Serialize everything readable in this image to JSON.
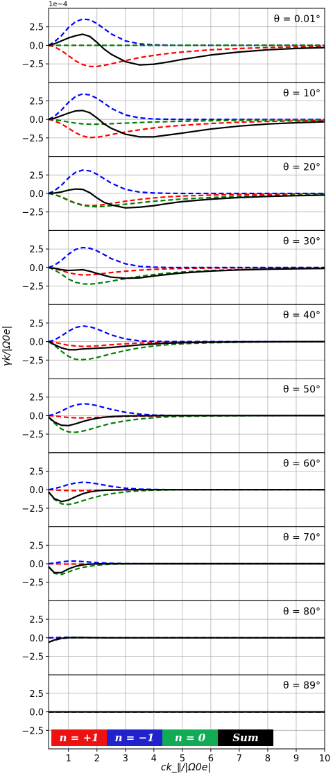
{
  "chart_data": {
    "type": "line",
    "layout": "10 stacked panels sharing x axis",
    "xlabel": "ck_∥/|Ω0e|",
    "ylabel": "γk/|Ω0e|",
    "offset_text": "1e−4",
    "y_scale_factor": 0.0001,
    "xlim": [
      0.3,
      10
    ],
    "ylim": [
      -5,
      5
    ],
    "xticks": [
      1,
      2,
      3,
      4,
      5,
      6,
      7,
      8,
      9,
      10
    ],
    "yticks": [
      -2.5,
      0.0,
      2.5
    ],
    "ytick_labels": [
      "−2.5",
      "0.0",
      "2.5"
    ],
    "grid": true,
    "legend": {
      "placement": "bottom-left of last panel",
      "entries": [
        {
          "label": "n = +1",
          "color": "#ee1111"
        },
        {
          "label": "n = −1",
          "color": "#2222cc"
        },
        {
          "label": "n = 0",
          "color": "#11aa55"
        },
        {
          "label": "Sum",
          "color": "#000000"
        }
      ]
    },
    "series_styles": {
      "n+1": {
        "color": "#ff0000",
        "dash": true
      },
      "n-1": {
        "color": "#0000ff",
        "dash": true
      },
      "n0": {
        "color": "#008000",
        "dash": true
      },
      "sum": {
        "color": "#000000",
        "dash": false
      }
    },
    "x": [
      0.3,
      0.5,
      0.75,
      1.0,
      1.25,
      1.5,
      1.75,
      2.0,
      2.25,
      2.5,
      3.0,
      3.5,
      4.0,
      4.5,
      5.0,
      6.0,
      7.0,
      8.0,
      9.0,
      10.0
    ],
    "panels": [
      {
        "label": "θ = 0.01°",
        "n_plus1": [
          0.0,
          -0.2,
          -0.7,
          -1.4,
          -2.1,
          -2.6,
          -2.85,
          -2.85,
          -2.7,
          -2.5,
          -2.05,
          -1.65,
          -1.35,
          -1.1,
          -0.9,
          -0.6,
          -0.42,
          -0.3,
          -0.22,
          -0.16
        ],
        "n_minus1": [
          0.0,
          0.45,
          1.3,
          2.4,
          3.2,
          3.55,
          3.45,
          2.95,
          2.25,
          1.55,
          0.6,
          0.2,
          0.07,
          0.02,
          0.0,
          0.0,
          0.0,
          0.0,
          0.0,
          0.0
        ],
        "n_0": [
          0.0,
          0.0,
          0.0,
          0.0,
          0.0,
          0.0,
          0.0,
          0.0,
          0.0,
          0.0,
          0.0,
          0.0,
          0.0,
          0.0,
          0.0,
          0.0,
          0.0,
          0.0,
          0.0,
          0.0
        ],
        "sum": [
          0.0,
          0.2,
          0.6,
          1.0,
          1.3,
          1.5,
          1.2,
          0.4,
          -0.5,
          -1.2,
          -2.2,
          -2.65,
          -2.55,
          -2.25,
          -1.9,
          -1.3,
          -0.9,
          -0.6,
          -0.42,
          -0.3
        ]
      },
      {
        "label": "θ = 10°",
        "n_plus1": [
          0.0,
          -0.2,
          -0.6,
          -1.2,
          -1.8,
          -2.25,
          -2.45,
          -2.4,
          -2.25,
          -2.05,
          -1.7,
          -1.4,
          -1.15,
          -0.95,
          -0.8,
          -0.55,
          -0.38,
          -0.27,
          -0.2,
          -0.14
        ],
        "n_minus1": [
          0.0,
          0.4,
          1.25,
          2.3,
          3.1,
          3.45,
          3.3,
          2.85,
          2.2,
          1.5,
          0.6,
          0.2,
          0.06,
          0.02,
          0.0,
          0.0,
          0.0,
          0.0,
          0.0,
          0.0
        ],
        "n_0": [
          0.0,
          -0.05,
          -0.18,
          -0.35,
          -0.5,
          -0.6,
          -0.65,
          -0.65,
          -0.62,
          -0.58,
          -0.5,
          -0.42,
          -0.35,
          -0.3,
          -0.25,
          -0.18,
          -0.13,
          -0.1,
          -0.08,
          -0.06
        ],
        "sum": [
          0.0,
          0.15,
          0.5,
          0.85,
          1.15,
          1.2,
          0.9,
          0.2,
          -0.6,
          -1.2,
          -2.0,
          -2.35,
          -2.35,
          -2.1,
          -1.85,
          -1.3,
          -0.9,
          -0.62,
          -0.45,
          -0.32
        ]
      },
      {
        "label": "θ = 20°",
        "n_plus1": [
          0.0,
          -0.15,
          -0.45,
          -0.9,
          -1.3,
          -1.55,
          -1.65,
          -1.6,
          -1.5,
          -1.35,
          -1.05,
          -0.8,
          -0.6,
          -0.45,
          -0.35,
          -0.22,
          -0.15,
          -0.1,
          -0.07,
          -0.05
        ],
        "n_minus1": [
          0.0,
          0.35,
          1.1,
          2.1,
          2.85,
          3.15,
          3.05,
          2.6,
          2.0,
          1.4,
          0.55,
          0.18,
          0.06,
          0.02,
          0.0,
          0.0,
          0.0,
          0.0,
          0.0,
          0.0
        ],
        "n_0": [
          0.0,
          -0.15,
          -0.5,
          -0.95,
          -1.35,
          -1.6,
          -1.75,
          -1.8,
          -1.75,
          -1.65,
          -1.45,
          -1.25,
          -1.05,
          -0.9,
          -0.75,
          -0.55,
          -0.4,
          -0.3,
          -0.23,
          -0.18
        ],
        "sum": [
          0.0,
          0.05,
          0.2,
          0.45,
          0.6,
          0.55,
          0.1,
          -0.6,
          -1.2,
          -1.55,
          -1.95,
          -1.85,
          -1.65,
          -1.35,
          -1.1,
          -0.77,
          -0.55,
          -0.4,
          -0.3,
          -0.23
        ]
      },
      {
        "label": "θ = 30°",
        "n_plus1": [
          0.0,
          -0.12,
          -0.4,
          -0.7,
          -0.9,
          -1.0,
          -0.98,
          -0.9,
          -0.8,
          -0.68,
          -0.5,
          -0.35,
          -0.25,
          -0.18,
          -0.13,
          -0.08,
          -0.05,
          -0.03,
          -0.02,
          -0.01
        ],
        "n_minus1": [
          0.0,
          0.3,
          0.95,
          1.8,
          2.45,
          2.7,
          2.6,
          2.25,
          1.75,
          1.2,
          0.5,
          0.15,
          0.05,
          0.0,
          0.0,
          0.0,
          0.0,
          0.0,
          0.0,
          0.0
        ],
        "n_0": [
          0.0,
          -0.3,
          -0.9,
          -1.55,
          -2.0,
          -2.2,
          -2.25,
          -2.15,
          -2.0,
          -1.85,
          -1.5,
          -1.2,
          -0.95,
          -0.75,
          -0.6,
          -0.4,
          -0.28,
          -0.2,
          -0.15,
          -0.12
        ],
        "sum": [
          0.0,
          -0.1,
          -0.3,
          -0.4,
          -0.35,
          -0.3,
          -0.5,
          -0.8,
          -1.05,
          -1.3,
          -1.45,
          -1.4,
          -1.15,
          -0.93,
          -0.73,
          -0.48,
          -0.33,
          -0.23,
          -0.17,
          -0.13
        ]
      },
      {
        "label": "θ = 40°",
        "n_plus1": [
          0.0,
          -0.1,
          -0.3,
          -0.5,
          -0.6,
          -0.65,
          -0.63,
          -0.58,
          -0.5,
          -0.43,
          -0.3,
          -0.2,
          -0.14,
          -0.1,
          -0.07,
          -0.04,
          -0.02,
          -0.01,
          0.0,
          0.0
        ],
        "n_minus1": [
          0.0,
          0.2,
          0.75,
          1.4,
          1.9,
          2.1,
          2.0,
          1.7,
          1.3,
          0.9,
          0.35,
          0.1,
          0.03,
          0.0,
          0.0,
          0.0,
          0.0,
          0.0,
          0.0,
          0.0
        ],
        "n_0": [
          0.0,
          -0.5,
          -1.3,
          -2.0,
          -2.4,
          -2.45,
          -2.35,
          -2.15,
          -1.9,
          -1.65,
          -1.2,
          -0.85,
          -0.6,
          -0.42,
          -0.3,
          -0.16,
          -0.09,
          -0.05,
          -0.03,
          -0.02
        ],
        "sum": [
          0.0,
          -0.4,
          -0.85,
          -1.1,
          -1.1,
          -1.0,
          -0.95,
          -0.9,
          -0.85,
          -0.8,
          -0.62,
          -0.45,
          -0.32,
          -0.22,
          -0.16,
          -0.09,
          -0.05,
          -0.03,
          -0.02,
          -0.01
        ]
      },
      {
        "label": "θ = 50°",
        "n_plus1": [
          0.0,
          -0.05,
          -0.15,
          -0.25,
          -0.3,
          -0.3,
          -0.28,
          -0.24,
          -0.2,
          -0.16,
          -0.1,
          -0.06,
          -0.04,
          -0.02,
          -0.01,
          0.0,
          0.0,
          0.0,
          0.0,
          0.0
        ],
        "n_minus1": [
          0.0,
          0.2,
          0.6,
          1.1,
          1.45,
          1.6,
          1.55,
          1.35,
          1.1,
          0.85,
          0.45,
          0.2,
          0.08,
          0.03,
          0.0,
          0.0,
          0.0,
          0.0,
          0.0,
          0.0
        ],
        "n_0": [
          -0.2,
          -1.0,
          -1.8,
          -2.2,
          -2.25,
          -2.1,
          -1.85,
          -1.55,
          -1.3,
          -1.05,
          -0.7,
          -0.45,
          -0.28,
          -0.17,
          -0.1,
          -0.04,
          -0.02,
          -0.01,
          0.0,
          0.0
        ],
        "sum": [
          -0.2,
          -0.85,
          -1.3,
          -1.35,
          -1.1,
          -0.8,
          -0.55,
          -0.35,
          -0.22,
          -0.14,
          -0.05,
          -0.02,
          -0.01,
          0.0,
          0.0,
          0.0,
          0.0,
          0.0,
          0.0,
          0.0
        ]
      },
      {
        "label": "θ = 60°",
        "n_plus1": [
          0.0,
          -0.03,
          -0.08,
          -0.12,
          -0.14,
          -0.13,
          -0.11,
          -0.09,
          -0.07,
          -0.05,
          -0.03,
          -0.02,
          -0.01,
          0.0,
          0.0,
          0.0,
          0.0,
          0.0,
          0.0,
          0.0
        ],
        "n_minus1": [
          0.0,
          0.15,
          0.4,
          0.7,
          0.9,
          1.0,
          0.95,
          0.8,
          0.62,
          0.45,
          0.2,
          0.08,
          0.03,
          0.01,
          0.0,
          0.0,
          0.0,
          0.0,
          0.0,
          0.0
        ],
        "n_0": [
          -0.3,
          -1.3,
          -1.9,
          -2.0,
          -1.8,
          -1.5,
          -1.2,
          -0.95,
          -0.72,
          -0.55,
          -0.3,
          -0.15,
          -0.07,
          -0.03,
          -0.01,
          0.0,
          0.0,
          0.0,
          0.0,
          0.0
        ],
        "sum": [
          -0.3,
          -1.2,
          -1.6,
          -1.4,
          -0.95,
          -0.55,
          -0.3,
          -0.15,
          -0.08,
          -0.04,
          -0.01,
          0.0,
          0.0,
          0.0,
          0.0,
          0.0,
          0.0,
          0.0,
          0.0,
          0.0
        ]
      },
      {
        "label": "θ = 70°",
        "n_plus1": [
          0.0,
          -0.02,
          -0.04,
          -0.05,
          -0.05,
          -0.04,
          -0.03,
          -0.02,
          -0.01,
          0.0,
          0.0,
          0.0,
          0.0,
          0.0,
          0.0,
          0.0,
          0.0,
          0.0,
          0.0,
          0.0
        ],
        "n_minus1": [
          0.0,
          0.1,
          0.25,
          0.35,
          0.35,
          0.3,
          0.22,
          0.15,
          0.1,
          0.06,
          0.02,
          0.0,
          0.0,
          0.0,
          0.0,
          0.0,
          0.0,
          0.0,
          0.0,
          0.0
        ],
        "n_0": [
          -0.4,
          -1.3,
          -1.45,
          -1.1,
          -0.75,
          -0.5,
          -0.32,
          -0.2,
          -0.12,
          -0.07,
          -0.02,
          0.0,
          0.0,
          0.0,
          0.0,
          0.0,
          0.0,
          0.0,
          0.0,
          0.0
        ],
        "sum": [
          -0.4,
          -1.2,
          -1.2,
          -0.7,
          -0.35,
          -0.15,
          -0.06,
          -0.02,
          0.0,
          0.0,
          0.0,
          0.0,
          0.0,
          0.0,
          0.0,
          0.0,
          0.0,
          0.0,
          0.0,
          0.0
        ]
      },
      {
        "label": "θ = 80°",
        "n_plus1": [
          0.0,
          -0.01,
          -0.01,
          0.0,
          0.0,
          0.0,
          0.0,
          0.0,
          0.0,
          0.0,
          0.0,
          0.0,
          0.0,
          0.0,
          0.0,
          0.0,
          0.0,
          0.0,
          0.0,
          0.0
        ],
        "n_minus1": [
          0.0,
          0.02,
          0.05,
          0.06,
          0.05,
          0.04,
          0.03,
          0.02,
          0.01,
          0.0,
          0.0,
          0.0,
          0.0,
          0.0,
          0.0,
          0.0,
          0.0,
          0.0,
          0.0,
          0.0
        ],
        "n_0": [
          -0.6,
          -0.35,
          -0.1,
          -0.02,
          0.0,
          0.0,
          0.0,
          0.0,
          0.0,
          0.0,
          0.0,
          0.0,
          0.0,
          0.0,
          0.0,
          0.0,
          0.0,
          0.0,
          0.0,
          0.0
        ],
        "sum": [
          -0.6,
          -0.3,
          -0.06,
          0.02,
          0.03,
          0.03,
          0.02,
          0.01,
          0.0,
          0.0,
          0.0,
          0.0,
          0.0,
          0.0,
          0.0,
          0.0,
          0.0,
          0.0,
          0.0,
          0.0
        ]
      },
      {
        "label": "θ = 89°",
        "n_plus1": [
          0.0,
          0.0,
          0.0,
          0.0,
          0.0,
          0.0,
          0.0,
          0.0,
          0.0,
          0.0,
          0.0,
          0.0,
          0.0,
          0.0,
          0.0,
          0.0,
          0.0,
          0.0,
          0.0,
          0.0
        ],
        "n_minus1": [
          0.0,
          0.0,
          0.0,
          0.0,
          0.0,
          0.0,
          0.0,
          0.0,
          0.0,
          0.0,
          0.0,
          0.0,
          0.0,
          0.0,
          0.0,
          0.0,
          0.0,
          0.0,
          0.0,
          0.0
        ],
        "n_0": [
          0.0,
          0.0,
          0.0,
          0.0,
          0.0,
          0.0,
          0.0,
          0.0,
          0.0,
          0.0,
          0.0,
          0.0,
          0.0,
          0.0,
          0.0,
          0.0,
          0.0,
          0.0,
          0.0,
          0.0
        ],
        "sum": [
          0.0,
          0.0,
          0.0,
          0.0,
          0.0,
          0.0,
          0.0,
          0.0,
          0.0,
          0.0,
          0.0,
          0.0,
          0.0,
          0.0,
          0.0,
          0.0,
          0.0,
          0.0,
          0.0,
          0.0
        ]
      }
    ]
  }
}
